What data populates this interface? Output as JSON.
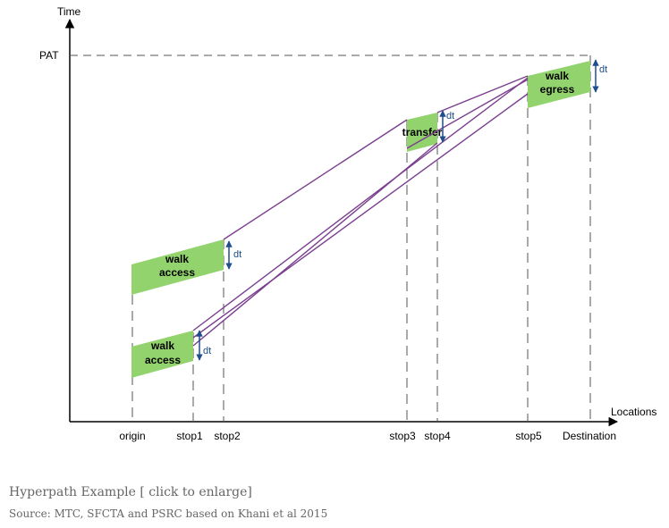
{
  "diagram": {
    "y_axis_label": "Time",
    "x_axis_label": "Locations",
    "pat_label": "PAT",
    "locations": [
      "origin",
      "stop1",
      "stop2",
      "stop3",
      "stop4",
      "stop5",
      "Destination"
    ],
    "boxes": {
      "walk_access_upper": [
        "walk",
        "access"
      ],
      "walk_access_lower": [
        "walk",
        "access"
      ],
      "transfer": "transfer",
      "walk_egress": [
        "walk",
        "egress"
      ]
    },
    "dt_label": "dt",
    "colors": {
      "box_fill": "#92d36e",
      "path_line": "#7b3f8f",
      "dt_arrow": "#1f4e8c"
    }
  },
  "caption": {
    "title": "Hyperpath Example [ click to enlarge]",
    "source": "Source: MTC, SFCTA and PSRC based on Khani et al 2015"
  }
}
